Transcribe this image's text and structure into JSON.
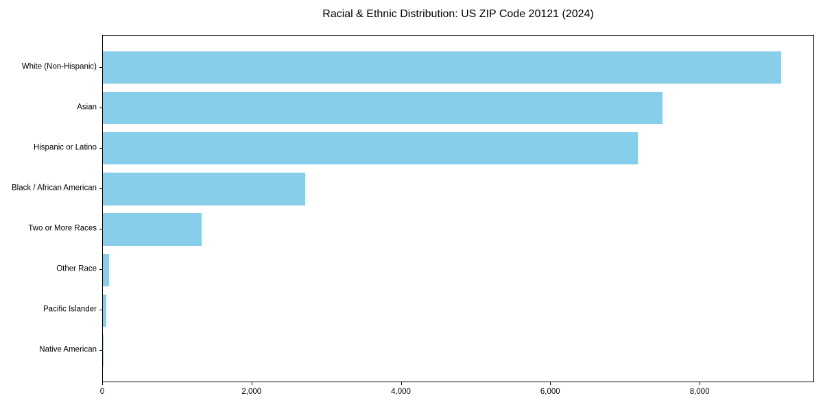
{
  "chart_data": {
    "type": "bar",
    "orientation": "horizontal",
    "title": "Racial & Ethnic Distribution: US ZIP Code 20121 (2024)",
    "xlabel": "",
    "ylabel": "",
    "grid": false,
    "legend": null,
    "bar_color": "#87CEEB",
    "axis_color": "#000000",
    "background_color": "#ffffff",
    "categories": [
      "White (Non-Hispanic)",
      "Asian",
      "Hispanic or Latino",
      "Black / African American",
      "Two or More Races",
      "Other Race",
      "Pacific Islander",
      "Native American"
    ],
    "values": [
      9080,
      7490,
      7160,
      2710,
      1325,
      85,
      45,
      10
    ],
    "xlim": [
      0,
      9533
    ],
    "x_tick_values": [
      0,
      2000,
      4000,
      6000,
      8000
    ],
    "x_tick_labels": [
      "0",
      "2,000",
      "4,000",
      "6,000",
      "8,000"
    ]
  }
}
